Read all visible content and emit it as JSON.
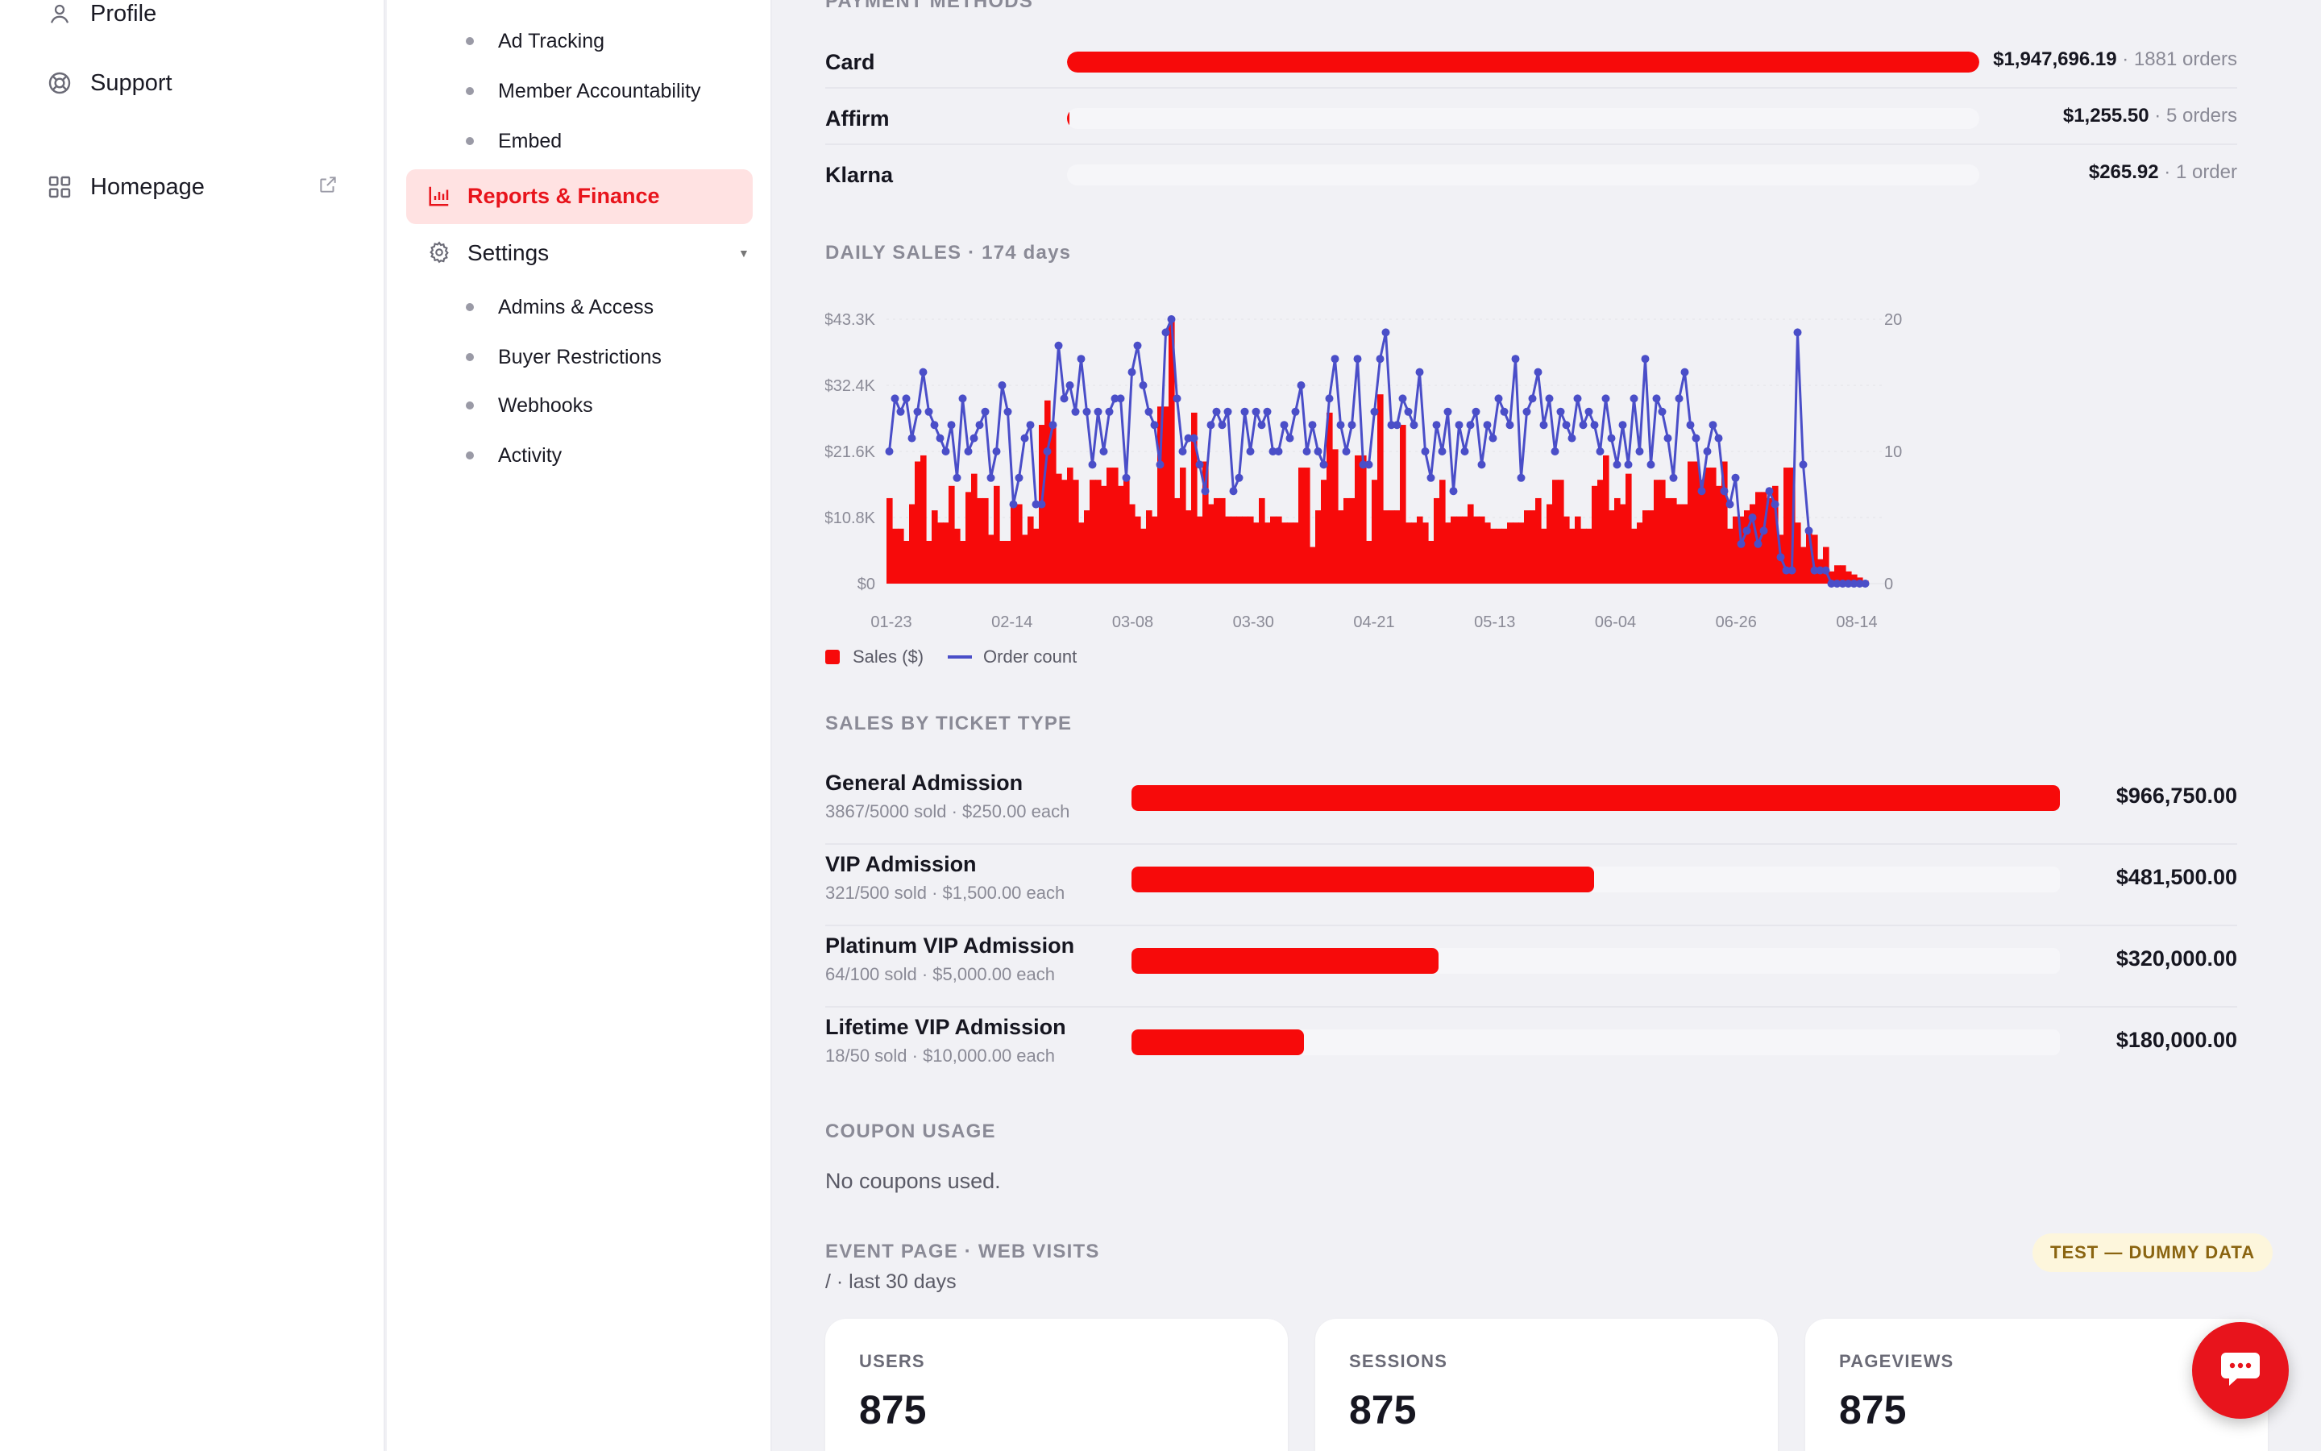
{
  "nav_primary": {
    "items": [
      {
        "label": "Profile",
        "icon": "user-icon"
      },
      {
        "label": "Support",
        "icon": "lifebuoy-icon"
      },
      {
        "label": "Homepage",
        "icon": "grid-icon"
      }
    ]
  },
  "nav_secondary": {
    "marketing_items": [
      "Ad Tracking",
      "Member Accountability",
      "Embed"
    ],
    "active_label": "Reports & Finance",
    "settings_label": "Settings",
    "settings_items": [
      "Admins & Access",
      "Buyer Restrictions",
      "Webhooks",
      "Activity"
    ]
  },
  "payment_methods": {
    "title": "PAYMENT METHODS",
    "rows": [
      {
        "name": "Card",
        "amount": "$1,947,696.19",
        "orders": " · 1881 orders",
        "share": 0.99999
      },
      {
        "name": "Affirm",
        "amount": "$1,255.50",
        "orders": " · 5 orders",
        "share": 0.0006
      },
      {
        "name": "Klarna",
        "amount": "$265.92",
        "orders": " · 1 order",
        "share": 0.0
      }
    ]
  },
  "daily_sales": {
    "title": "DAILY SALES · 174 days",
    "legend_sales": "Sales ($)",
    "legend_orders": "Order count"
  },
  "chart_data": {
    "type": "bar",
    "combo": "bar+line (dual axis)",
    "x_tick_labels": [
      "01-23",
      "02-14",
      "03-08",
      "03-30",
      "04-21",
      "05-13",
      "06-04",
      "06-26",
      "08-14"
    ],
    "y_left_ticks": [
      "$0",
      "$10.8K",
      "$21.6K",
      "$32.4K",
      "$43.3K"
    ],
    "y_right_ticks": [
      "0",
      "10",
      "20"
    ],
    "y_left_lim": [
      0,
      43300
    ],
    "y_right_lim": [
      0,
      20
    ],
    "series": [
      {
        "name": "Sales ($)",
        "type": "bar",
        "color": "#f70a0a",
        "values": [
          14000,
          9000,
          9000,
          7000,
          13000,
          20000,
          21000,
          7000,
          12000,
          10000,
          10000,
          16000,
          9000,
          7000,
          15000,
          18000,
          14000,
          14000,
          8000,
          16000,
          7000,
          7000,
          13000,
          13000,
          8000,
          11000,
          9000,
          26000,
          30000,
          26000,
          18000,
          17000,
          19000,
          17000,
          10000,
          12000,
          17000,
          17000,
          16000,
          19000,
          19000,
          16000,
          17000,
          13000,
          11000,
          9000,
          12000,
          11000,
          29000,
          29000,
          43300,
          14000,
          19000,
          12000,
          28000,
          11000,
          20000,
          13000,
          14000,
          14000,
          11000,
          11000,
          11000,
          11000,
          11000,
          10000,
          14000,
          10000,
          11000,
          11000,
          10000,
          10000,
          10000,
          19000,
          19000,
          6000,
          12000,
          17000,
          28000,
          22000,
          12000,
          14000,
          14000,
          21000,
          21000,
          7000,
          17000,
          31000,
          12000,
          12000,
          12000,
          26000,
          10000,
          10000,
          11000,
          10000,
          7000,
          14000,
          17000,
          10000,
          11000,
          11000,
          11000,
          13000,
          11000,
          11000,
          10000,
          9000,
          9000,
          9000,
          10000,
          10000,
          10000,
          12000,
          12000,
          14000,
          9000,
          13000,
          17000,
          17000,
          11000,
          9000,
          11000,
          9000,
          9000,
          16000,
          17000,
          21000,
          12000,
          14000,
          13000,
          18000,
          9000,
          10000,
          12000,
          12000,
          17000,
          17000,
          14000,
          14000,
          13000,
          13000,
          20000,
          20000,
          17000,
          19000,
          19000,
          16000,
          20000,
          9000,
          11000,
          11000,
          12000,
          13000,
          15000,
          15000,
          14000,
          16000,
          8000,
          19000,
          19000,
          10000,
          6000,
          9000,
          8000,
          4000,
          6000,
          2000,
          3000,
          3000,
          2000,
          1500,
          1000,
          500
        ]
      },
      {
        "name": "Order count",
        "type": "line",
        "color": "#4a4ec8",
        "values": [
          10,
          14,
          13,
          14,
          11,
          13,
          16,
          13,
          12,
          11,
          10,
          12,
          8,
          14,
          10,
          11,
          12,
          13,
          8,
          10,
          15,
          13,
          6,
          8,
          11,
          12,
          6,
          6,
          10,
          12,
          18,
          14,
          15,
          13,
          17,
          13,
          9,
          13,
          10,
          13,
          14,
          14,
          8,
          16,
          18,
          15,
          13,
          12,
          9,
          19,
          20,
          14,
          10,
          11,
          11,
          9,
          7,
          12,
          13,
          12,
          13,
          7,
          8,
          13,
          10,
          13,
          12,
          13,
          10,
          10,
          12,
          11,
          13,
          15,
          10,
          12,
          10,
          9,
          14,
          17,
          12,
          10,
          12,
          17,
          9,
          9,
          13,
          17,
          19,
          12,
          12,
          14,
          13,
          12,
          16,
          10,
          8,
          12,
          10,
          13,
          7,
          12,
          10,
          12,
          13,
          9,
          12,
          11,
          14,
          13,
          12,
          17,
          8,
          13,
          14,
          16,
          12,
          14,
          10,
          13,
          12,
          11,
          14,
          12,
          13,
          12,
          10,
          14,
          11,
          9,
          12,
          9,
          14,
          10,
          17,
          9,
          14,
          13,
          11,
          8,
          14,
          16,
          12,
          11,
          7,
          10,
          12,
          11,
          7,
          6,
          8,
          3,
          4,
          5,
          3,
          4,
          7,
          6,
          2,
          1,
          1,
          19,
          9,
          4,
          1,
          1,
          1,
          0,
          0,
          0,
          0,
          0,
          0,
          0
        ]
      }
    ],
    "grid": true,
    "legend_position": "bottom-left"
  },
  "ticket_types": {
    "title": "SALES BY TICKET TYPE",
    "rows": [
      {
        "name": "General Admission",
        "sub": "3867/5000 sold · $250.00 each",
        "amount": "$966,750.00",
        "fraction": 1.0
      },
      {
        "name": "VIP Admission",
        "sub": "321/500 sold · $1,500.00 each",
        "amount": "$481,500.00",
        "fraction": 0.498
      },
      {
        "name": "Platinum VIP Admission",
        "sub": "64/100 sold · $5,000.00 each",
        "amount": "$320,000.00",
        "fraction": 0.331
      },
      {
        "name": "Lifetime VIP Admission",
        "sub": "18/50 sold · $10,000.00 each",
        "amount": "$180,000.00",
        "fraction": 0.186
      }
    ]
  },
  "coupons": {
    "title": "COUPON USAGE",
    "text": "No coupons used."
  },
  "web_visits": {
    "title": "EVENT PAGE · WEB VISITS",
    "subtitle": "/ · last 30 days",
    "badge": "TEST — DUMMY DATA",
    "stats": [
      {
        "label": "USERS",
        "value": "875"
      },
      {
        "label": "SESSIONS",
        "value": "875"
      },
      {
        "label": "PAGEVIEWS",
        "value": "875"
      }
    ]
  },
  "colors": {
    "accent": "#f70a0a",
    "line": "#4a4ec8",
    "active_bg": "#ffe2e2"
  }
}
